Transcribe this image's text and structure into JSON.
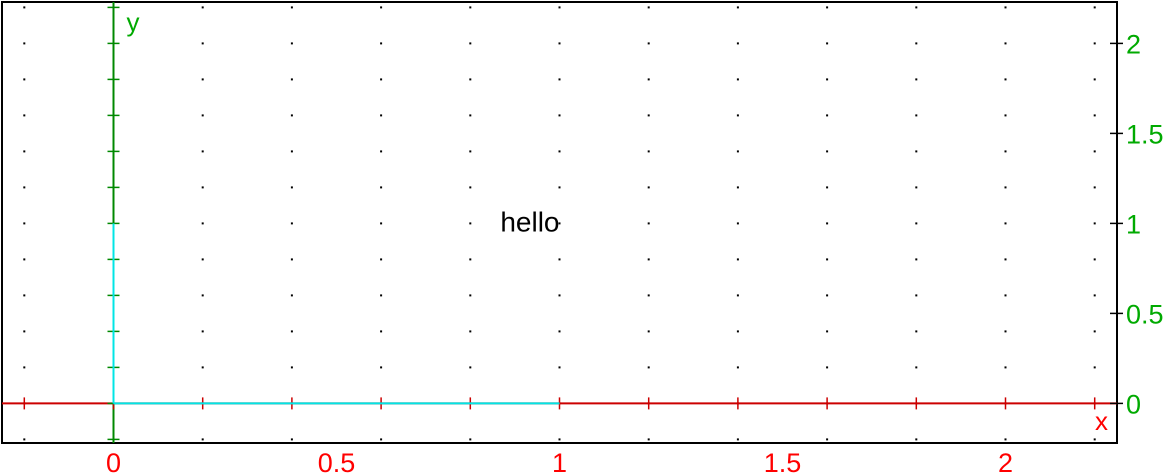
{
  "chart_data": {
    "type": "line",
    "title": "",
    "xlabel": "x",
    "ylabel": "y",
    "xlim": [
      -0.25,
      2.25
    ],
    "ylim": [
      -0.22,
      2.23
    ],
    "grid": true,
    "grid_style": "dotted",
    "x_ticks": [
      0,
      0.5,
      1,
      1.5,
      2
    ],
    "x_tick_labels": [
      "0",
      "0.5",
      "1",
      "1.5",
      "2"
    ],
    "y_ticks": [
      0,
      0.5,
      1,
      1.5,
      2
    ],
    "y_tick_labels": [
      "0",
      "0.5",
      "1",
      "1.5",
      "2"
    ],
    "x_minor_step": 0.2,
    "y_minor_step": 0.2,
    "series": [
      {
        "x": [
          0,
          1
        ],
        "y": [
          0,
          0
        ],
        "color": "#00e5e5"
      },
      {
        "x": [
          0,
          0
        ],
        "y": [
          0,
          1
        ],
        "color": "#00e5e5"
      }
    ],
    "annotations": [
      {
        "text": "hello",
        "x": 1,
        "y": 1
      }
    ],
    "colors": {
      "x_axis": "#cc0000",
      "x_labels": "#ff0000",
      "y_axis": "#008800",
      "y_labels": "#00aa00",
      "segments": "#00e5e5",
      "frame": "#000000"
    }
  }
}
